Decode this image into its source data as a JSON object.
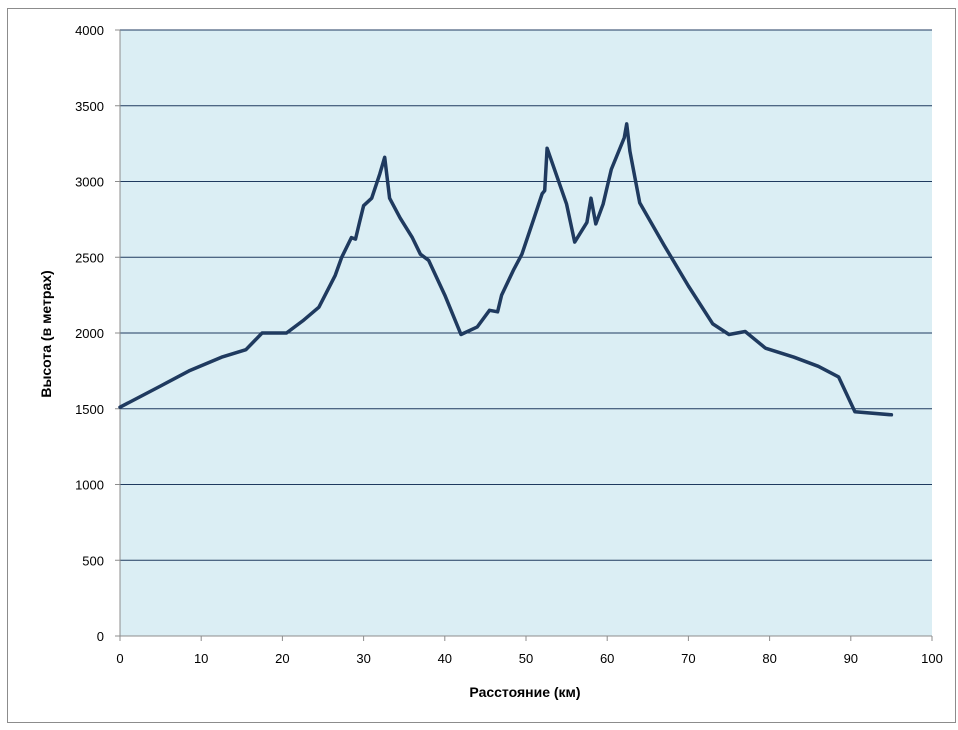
{
  "chart_data": {
    "type": "line",
    "title": "",
    "xlabel": "Расстояние (км)",
    "ylabel": "Высота (в метрах)",
    "xlim": [
      0,
      100
    ],
    "ylim": [
      0,
      4000
    ],
    "x_ticks": [
      0,
      10,
      20,
      30,
      40,
      50,
      60,
      70,
      80,
      90,
      100
    ],
    "y_ticks": [
      0,
      500,
      1000,
      1500,
      2000,
      2500,
      3000,
      3500,
      4000
    ],
    "x_tick_labels": [
      "0",
      "10",
      "20",
      "30",
      "40",
      "50",
      "60",
      "70",
      "80",
      "90",
      "100"
    ],
    "y_tick_labels": [
      "0",
      "500",
      "1000",
      "1500",
      "2000",
      "2500",
      "3000",
      "3500",
      "4000"
    ],
    "grid": "horizontal",
    "legend": "none",
    "colors": {
      "plot_background": "#dbeef4",
      "line": "#1f3a5f",
      "gridline": "#1f3a5f",
      "outer_border": "#8c8c8c"
    },
    "series": [
      {
        "x": [
          0,
          5,
          8.5,
          12.5,
          15.5,
          17.5,
          20.5,
          22.5,
          24.5,
          26.5,
          27.3,
          28.5,
          29,
          29.5,
          30,
          31,
          32,
          32.6,
          33.2,
          34.5,
          36,
          37,
          38,
          40,
          42,
          44,
          45.5,
          46.5,
          47,
          48.5,
          49.5,
          51,
          52,
          52.3,
          52.6,
          55,
          56,
          57.5,
          58,
          58.6,
          59.5,
          60.5,
          62.1,
          62.4,
          62.8,
          64,
          67,
          70,
          73,
          75,
          77,
          79.5,
          83,
          86,
          88.5,
          90.5,
          95
        ],
        "y": [
          1510,
          1650,
          1750,
          1840,
          1890,
          2000,
          2000,
          2080,
          2170,
          2380,
          2500,
          2630,
          2620,
          2730,
          2840,
          2890,
          3050,
          3160,
          2890,
          2760,
          2630,
          2520,
          2480,
          2250,
          1990,
          2040,
          2150,
          2140,
          2250,
          2420,
          2520,
          2760,
          2920,
          2940,
          3220,
          2850,
          2600,
          2730,
          2890,
          2720,
          2850,
          3080,
          3290,
          3380,
          3200,
          2860,
          2580,
          2310,
          2060,
          1990,
          2010,
          1900,
          1840,
          1780,
          1710,
          1480,
          1460
        ]
      }
    ]
  }
}
